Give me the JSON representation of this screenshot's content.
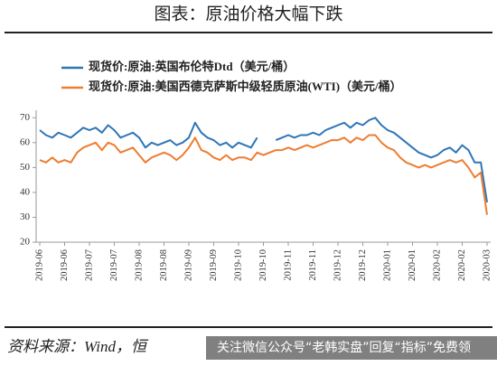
{
  "header": {
    "title": "图表：原油价格大幅下跌"
  },
  "chart_data": {
    "type": "line",
    "categories": [
      "2019-06",
      null,
      null,
      null,
      "2019-06",
      null,
      null,
      null,
      "2019-07",
      null,
      null,
      null,
      "2019-07",
      null,
      null,
      null,
      "2019-08",
      null,
      null,
      null,
      "2019-08",
      null,
      null,
      null,
      "2019-09",
      null,
      null,
      null,
      "2019-09",
      null,
      null,
      null,
      "2019-10",
      null,
      null,
      null,
      "2019-10",
      null,
      null,
      null,
      "2019-11",
      null,
      null,
      null,
      "2019-11",
      null,
      null,
      null,
      "2019-12",
      null,
      null,
      null,
      "2019-12",
      null,
      null,
      null,
      "2020-01",
      null,
      null,
      null,
      "2020-01",
      null,
      null,
      null,
      "2020-02",
      null,
      null,
      null,
      "2020-02",
      null,
      null,
      null,
      "2020-03"
    ],
    "series": [
      {
        "name": "现货价:原油:英国布伦特Dtd（美元/桶）",
        "color": "#2e75b6",
        "values": [
          65,
          63,
          62,
          64,
          63,
          62,
          64,
          66,
          65,
          66,
          64,
          67,
          65,
          62,
          63,
          64,
          62,
          58,
          60,
          59,
          60,
          61,
          59,
          60,
          62,
          68,
          64,
          62,
          61,
          59,
          60,
          58,
          60,
          59,
          58,
          62,
          null,
          null,
          61,
          62,
          63,
          62,
          63,
          63,
          64,
          63,
          65,
          66,
          67,
          68,
          66,
          68,
          67,
          69,
          70,
          67,
          65,
          64,
          62,
          60,
          58,
          56,
          55,
          54,
          55,
          57,
          58,
          56,
          59,
          57,
          52,
          52,
          36
        ]
      },
      {
        "name": "现货价:原油:美国西德克萨斯中级轻质原油(WTI)（美元/桶）",
        "color": "#ed7d31",
        "values": [
          53,
          52,
          54,
          52,
          53,
          52,
          56,
          58,
          59,
          60,
          57,
          60,
          59,
          56,
          57,
          58,
          55,
          52,
          54,
          55,
          56,
          55,
          53,
          55,
          58,
          62,
          57,
          56,
          54,
          53,
          55,
          53,
          54,
          54,
          53,
          56,
          55,
          56,
          57,
          57,
          58,
          57,
          58,
          59,
          58,
          59,
          60,
          61,
          61,
          62,
          60,
          62,
          61,
          63,
          63,
          60,
          58,
          57,
          54,
          52,
          51,
          50,
          51,
          50,
          51,
          52,
          53,
          52,
          53,
          50,
          46,
          48,
          31
        ]
      }
    ],
    "ylim": [
      20,
      73
    ],
    "yticks": [
      20,
      30,
      40,
      50,
      60,
      70
    ]
  },
  "footer": {
    "source": "资料来源：Wind，恒",
    "watermark": "关注微信公众号“老韩实盘”回复“指标”免费领"
  }
}
